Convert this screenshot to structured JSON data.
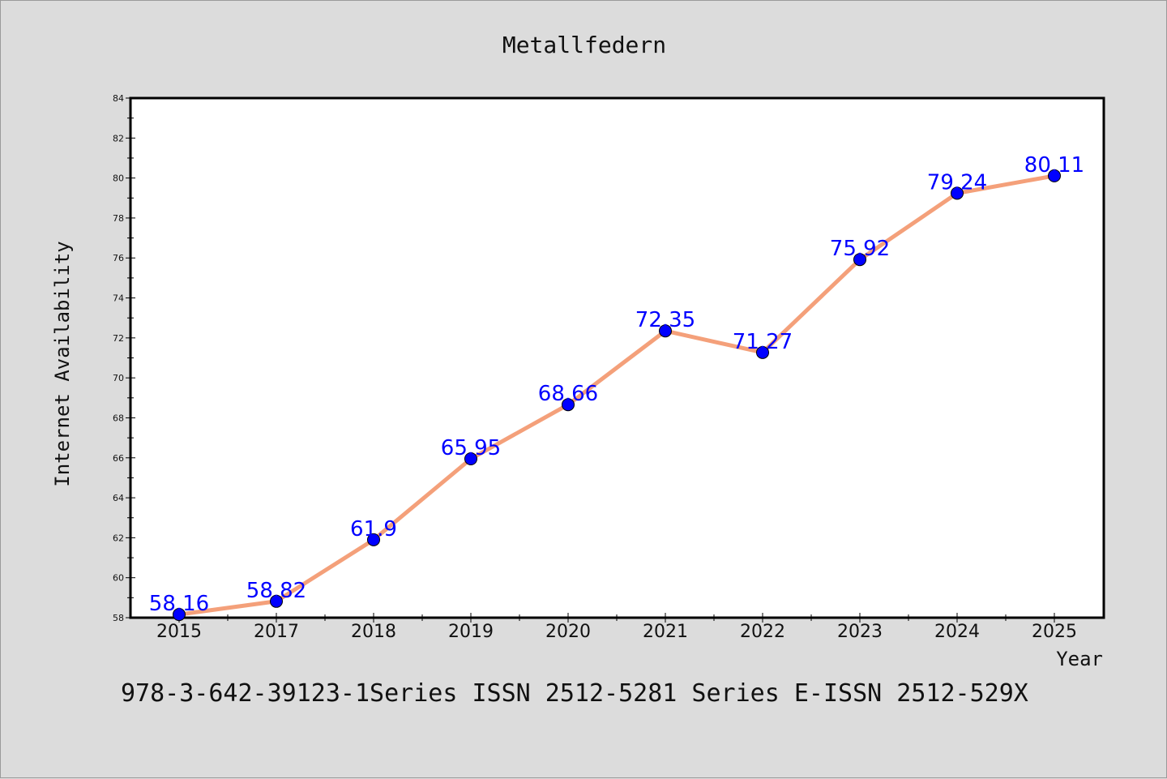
{
  "chart_data": {
    "type": "line",
    "title": "Metallfedern",
    "xlabel": "Year",
    "ylabel": "Internet Availability",
    "categories": [
      "2015",
      "2017",
      "2018",
      "2019",
      "2020",
      "2021",
      "2022",
      "2023",
      "2024",
      "2025"
    ],
    "series": [
      {
        "values": [
          58.16,
          58.82,
          61.9,
          65.95,
          68.66,
          72.35,
          71.27,
          75.92,
          79.24,
          80.11
        ],
        "labels": [
          "58.16",
          "58.82",
          "61.9",
          "65.95",
          "68.66",
          "72.35",
          "71.27",
          "75.92",
          "79.24",
          "80.11"
        ],
        "line_color": "#f4a07a",
        "marker_color": "#0000ff"
      }
    ],
    "ylim": [
      58,
      84
    ],
    "yticks": [
      58,
      60,
      62,
      64,
      66,
      68,
      70,
      72,
      74,
      76,
      78,
      80,
      82,
      84
    ],
    "grid": false,
    "legend": "none"
  },
  "footer_text": "978-3-642-39123-1Series ISSN 2512-5281 Series E-ISSN 2512-529X"
}
